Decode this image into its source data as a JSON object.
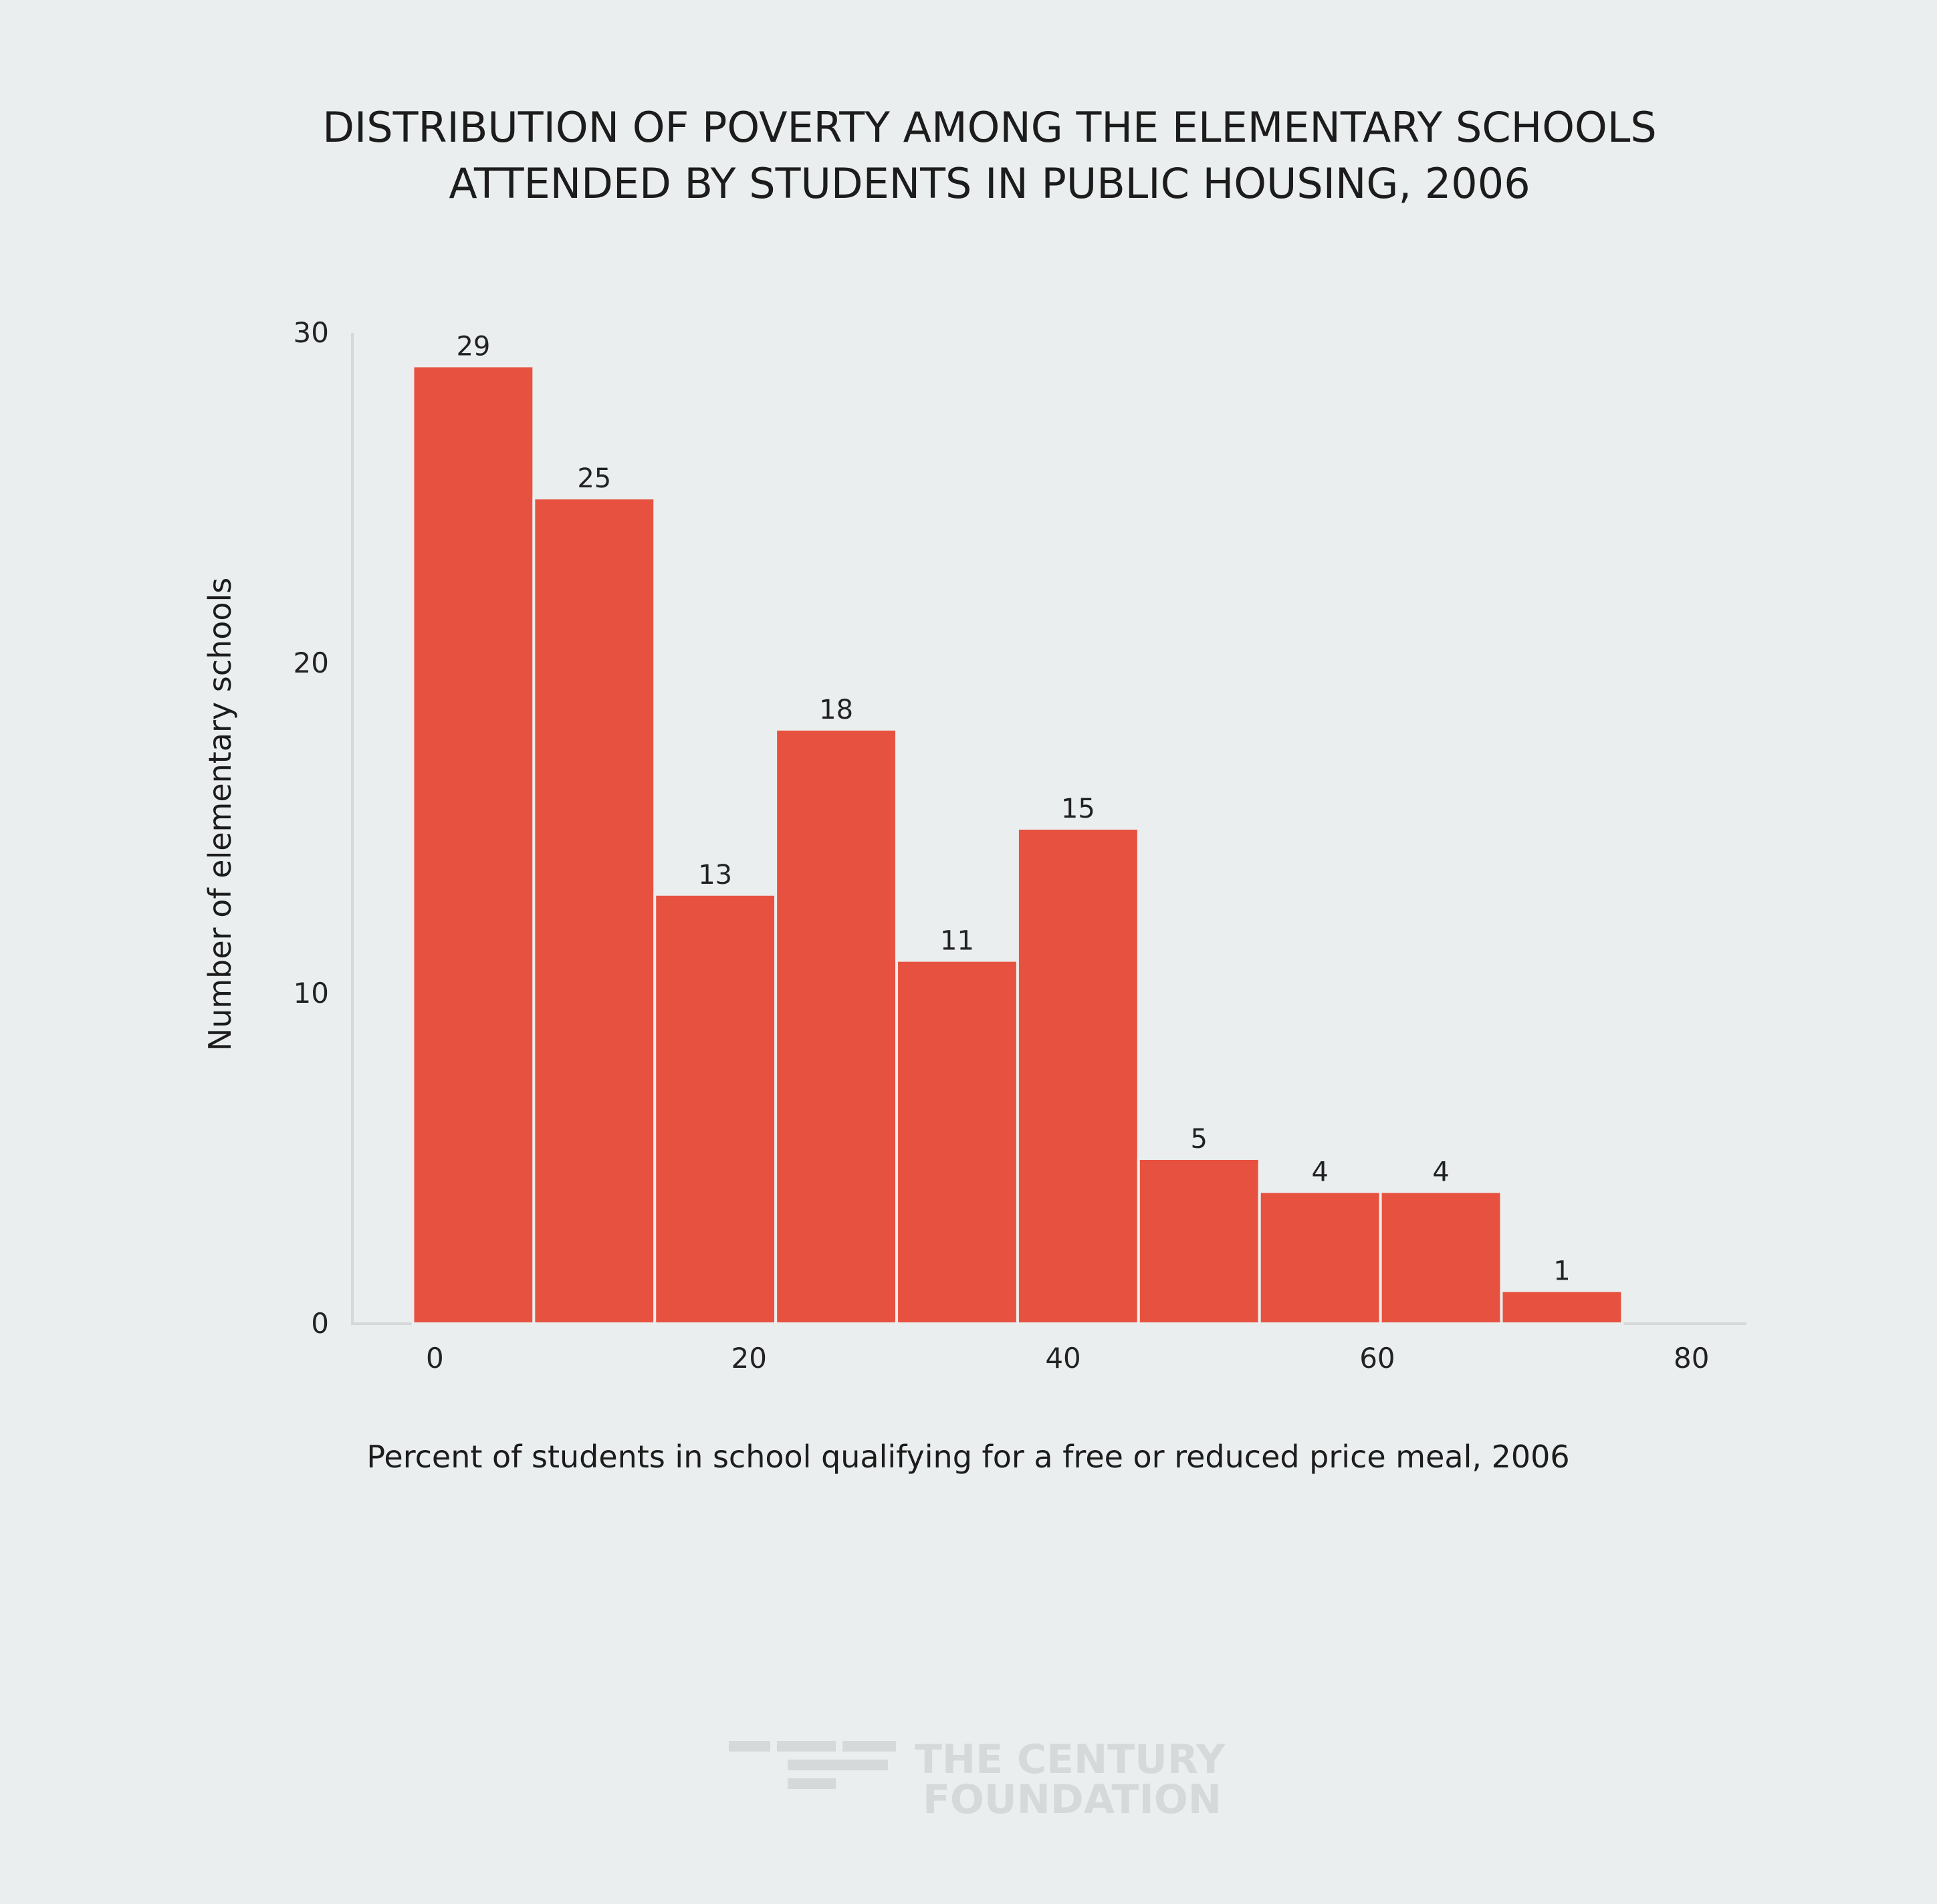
{
  "chart_data": {
    "type": "bar",
    "title": [
      "DISTRIBUTION OF POVERTY AMONG THE ELEMENTARY SCHOOLS",
      "ATTENDED BY STUDENTS IN PUBLIC HOUSING, 2006"
    ],
    "xlabel": "Percent of students in school qualifying for a free or reduced price meal, 2006",
    "ylabel": "Number of elementary schools",
    "xlim": [
      -5.25,
      83.5
    ],
    "ylim": [
      0,
      30
    ],
    "x_ticks": [
      0,
      20,
      40,
      60,
      80
    ],
    "y_ticks": [
      0,
      10,
      20,
      30
    ],
    "bin_width": 7.7,
    "bins": [
      {
        "start": -1.4,
        "value": 29
      },
      {
        "start": 6.3,
        "value": 25
      },
      {
        "start": 14.0,
        "value": 13
      },
      {
        "start": 21.7,
        "value": 18
      },
      {
        "start": 29.4,
        "value": 11
      },
      {
        "start": 37.1,
        "value": 15
      },
      {
        "start": 44.8,
        "value": 5
      },
      {
        "start": 52.5,
        "value": 4
      },
      {
        "start": 60.2,
        "value": 4
      },
      {
        "start": 67.9,
        "value": 1
      }
    ],
    "bar_color": "#e75240",
    "axis_color": "#d4d8d8",
    "grid": false,
    "legend": "none"
  },
  "logo": {
    "line1": "THE CENTURY",
    "line2": "FOUNDATION",
    "color": "#d5d9d9"
  }
}
